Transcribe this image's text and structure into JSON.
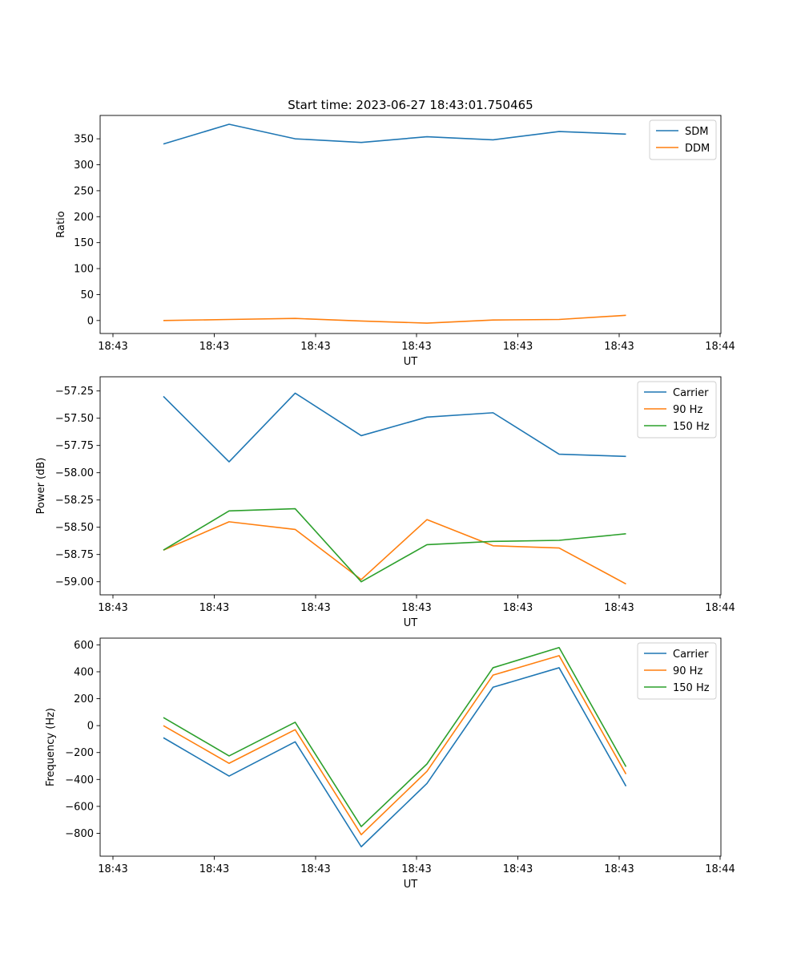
{
  "title": "Start time: 2023-06-27 18:43:01.750465",
  "chart_data": [
    {
      "type": "line",
      "xlabel": "UT",
      "ylabel": "Ratio",
      "x_tick_labels": [
        "18:43",
        "18:43",
        "18:43",
        "18:43",
        "18:43",
        "18:43",
        "18:44"
      ],
      "y_ticks": [
        0,
        50,
        100,
        150,
        200,
        250,
        300,
        350
      ],
      "y_tick_labels": [
        "0",
        "50",
        "100",
        "150",
        "200",
        "250",
        "300",
        "350"
      ],
      "ylim": [
        -25,
        395
      ],
      "legend_position": "top-right",
      "series": [
        {
          "name": "SDM",
          "color": "#1f77b4",
          "values": [
            340,
            378,
            350,
            343,
            354,
            348,
            364,
            359
          ]
        },
        {
          "name": "DDM",
          "color": "#ff7f0e",
          "values": [
            0,
            2,
            4,
            -1,
            -5,
            1,
            2,
            10
          ]
        }
      ]
    },
    {
      "type": "line",
      "xlabel": "UT",
      "ylabel": "Power (dB)",
      "x_tick_labels": [
        "18:43",
        "18:43",
        "18:43",
        "18:43",
        "18:43",
        "18:43",
        "18:44"
      ],
      "y_ticks": [
        -59.0,
        -58.75,
        -58.5,
        -58.25,
        -58.0,
        -57.75,
        -57.5,
        -57.25
      ],
      "y_tick_labels": [
        "−59.00",
        "−58.75",
        "−58.50",
        "−58.25",
        "−58.00",
        "−57.75",
        "−57.50",
        "−57.25"
      ],
      "ylim": [
        -59.12,
        -57.12
      ],
      "legend_position": "top-right",
      "series": [
        {
          "name": "Carrier",
          "color": "#1f77b4",
          "values": [
            -57.3,
            -57.9,
            -57.27,
            -57.66,
            -57.49,
            -57.45,
            -57.83,
            -57.85
          ]
        },
        {
          "name": "90 Hz",
          "color": "#ff7f0e",
          "values": [
            -58.71,
            -58.45,
            -58.52,
            -58.98,
            -58.43,
            -58.67,
            -58.69,
            -59.02
          ]
        },
        {
          "name": "150 Hz",
          "color": "#2ca02c",
          "values": [
            -58.71,
            -58.35,
            -58.33,
            -59.0,
            -58.66,
            -58.63,
            -58.62,
            -58.56
          ]
        }
      ]
    },
    {
      "type": "line",
      "xlabel": "UT",
      "ylabel": "Frequency (Hz)",
      "x_tick_labels": [
        "18:43",
        "18:43",
        "18:43",
        "18:43",
        "18:43",
        "18:43",
        "18:44"
      ],
      "y_ticks": [
        -800,
        -600,
        -400,
        -200,
        0,
        200,
        400,
        600
      ],
      "y_tick_labels": [
        "−800",
        "−600",
        "−400",
        "−200",
        "0",
        "200",
        "400",
        "600"
      ],
      "ylim": [
        -970,
        650
      ],
      "legend_position": "top-right",
      "series": [
        {
          "name": "Carrier",
          "color": "#1f77b4",
          "values": [
            -90,
            -375,
            -120,
            -900,
            -430,
            285,
            430,
            -450
          ]
        },
        {
          "name": "90 Hz",
          "color": "#ff7f0e",
          "values": [
            0,
            -280,
            -30,
            -810,
            -340,
            375,
            520,
            -360
          ]
        },
        {
          "name": "150 Hz",
          "color": "#2ca02c",
          "values": [
            60,
            -225,
            25,
            -750,
            -285,
            430,
            580,
            -305
          ]
        }
      ]
    }
  ]
}
